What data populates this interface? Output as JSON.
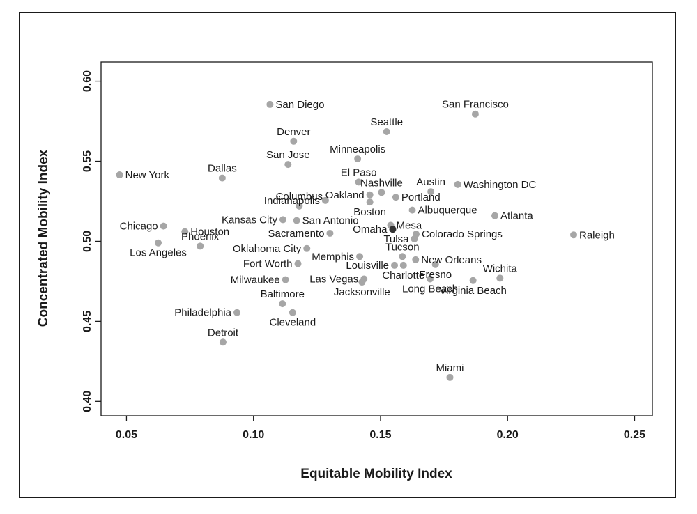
{
  "chart_data": {
    "type": "scatter",
    "title": "",
    "xlabel": "Equitable Mobility Index",
    "ylabel": "Concentrated Mobility Index",
    "xlim": [
      0.04,
      0.257
    ],
    "ylim": [
      0.391,
      0.612
    ],
    "xticks": [
      "0.05",
      "0.10",
      "0.15",
      "0.20",
      "0.25"
    ],
    "xtick_values": [
      0.05,
      0.1,
      0.15,
      0.2,
      0.25
    ],
    "yticks": [
      "0.40",
      "0.45",
      "0.50",
      "0.55",
      "0.60"
    ],
    "ytick_values": [
      0.4,
      0.45,
      0.5,
      0.55,
      0.6
    ],
    "grid": false,
    "point_color": "#a6a6a6",
    "highlight_color": "#333333",
    "points": [
      {
        "name": "San Diego",
        "x": 0.1065,
        "y": 0.5855,
        "lpos": "r"
      },
      {
        "name": "San Francisco",
        "x": 0.1873,
        "y": 0.5795,
        "lpos": "a"
      },
      {
        "name": "Seattle",
        "x": 0.1524,
        "y": 0.5685,
        "lpos": "a"
      },
      {
        "name": "Denver",
        "x": 0.1158,
        "y": 0.5625,
        "lpos": "a"
      },
      {
        "name": "Minneapolis",
        "x": 0.141,
        "y": 0.5515,
        "lpos": "a"
      },
      {
        "name": "San Jose",
        "x": 0.1136,
        "y": 0.548,
        "lpos": "a"
      },
      {
        "name": "New York",
        "x": 0.0473,
        "y": 0.5415,
        "lpos": "r"
      },
      {
        "name": "Dallas",
        "x": 0.0877,
        "y": 0.5395,
        "lpos": "a"
      },
      {
        "name": "El Paso",
        "x": 0.1414,
        "y": 0.537,
        "lpos": "a"
      },
      {
        "name": "Washington DC",
        "x": 0.1804,
        "y": 0.5355,
        "lpos": "r"
      },
      {
        "name": "Nashville",
        "x": 0.1504,
        "y": 0.5305,
        "lpos": "a"
      },
      {
        "name": "Austin",
        "x": 0.1698,
        "y": 0.531,
        "lpos": "a"
      },
      {
        "name": "Oakland",
        "x": 0.1458,
        "y": 0.529,
        "lpos": "l"
      },
      {
        "name": "Portland",
        "x": 0.156,
        "y": 0.5275,
        "lpos": "r"
      },
      {
        "name": "Indianapolis",
        "x": 0.1283,
        "y": 0.5255,
        "lpos": "l"
      },
      {
        "name": "Columbus",
        "x": 0.118,
        "y": 0.522,
        "lpos": "a"
      },
      {
        "name": "Boston",
        "x": 0.1458,
        "y": 0.5245,
        "lpos": "b"
      },
      {
        "name": "Albuquerque",
        "x": 0.1625,
        "y": 0.5195,
        "lpos": "r"
      },
      {
        "name": "Atlanta",
        "x": 0.195,
        "y": 0.516,
        "lpos": "r"
      },
      {
        "name": "Kansas City",
        "x": 0.1116,
        "y": 0.5135,
        "lpos": "l"
      },
      {
        "name": "San Antonio",
        "x": 0.117,
        "y": 0.513,
        "lpos": "r"
      },
      {
        "name": "Mesa",
        "x": 0.154,
        "y": 0.51,
        "lpos": "r"
      },
      {
        "name": "Omaha",
        "x": 0.1548,
        "y": 0.5075,
        "lpos": "l",
        "highlight": true
      },
      {
        "name": "Chicago",
        "x": 0.0646,
        "y": 0.5095,
        "lpos": "l"
      },
      {
        "name": "Houston",
        "x": 0.073,
        "y": 0.506,
        "lpos": "r"
      },
      {
        "name": "Colorado Springs",
        "x": 0.164,
        "y": 0.5045,
        "lpos": "r"
      },
      {
        "name": "Sacramento",
        "x": 0.1301,
        "y": 0.505,
        "lpos": "l"
      },
      {
        "name": "Raleigh",
        "x": 0.226,
        "y": 0.504,
        "lpos": "r"
      },
      {
        "name": "Tulsa",
        "x": 0.1633,
        "y": 0.5015,
        "lpos": "l"
      },
      {
        "name": "Los Angeles",
        "x": 0.0625,
        "y": 0.499,
        "lpos": "b"
      },
      {
        "name": "Phoenix",
        "x": 0.079,
        "y": 0.497,
        "lpos": "a"
      },
      {
        "name": "Oklahoma City",
        "x": 0.121,
        "y": 0.4955,
        "lpos": "l"
      },
      {
        "name": "Tucson",
        "x": 0.1586,
        "y": 0.4905,
        "lpos": "a"
      },
      {
        "name": "Memphis",
        "x": 0.1418,
        "y": 0.4905,
        "lpos": "l"
      },
      {
        "name": "New Orleans",
        "x": 0.1638,
        "y": 0.4885,
        "lpos": "r"
      },
      {
        "name": "Fort Worth",
        "x": 0.1175,
        "y": 0.486,
        "lpos": "l"
      },
      {
        "name": "Fresno",
        "x": 0.1716,
        "y": 0.4855,
        "lpos": "b"
      },
      {
        "name": "Louisville",
        "x": 0.1555,
        "y": 0.485,
        "lpos": "l"
      },
      {
        "name": "Charlotte",
        "x": 0.159,
        "y": 0.485,
        "lpos": "b"
      },
      {
        "name": "Wichita",
        "x": 0.197,
        "y": 0.477,
        "lpos": "a"
      },
      {
        "name": "Las Vegas",
        "x": 0.1435,
        "y": 0.4765,
        "lpos": "l"
      },
      {
        "name": "Milwaukee",
        "x": 0.1126,
        "y": 0.476,
        "lpos": "l"
      },
      {
        "name": "Long Beach",
        "x": 0.1695,
        "y": 0.4765,
        "lpos": "b"
      },
      {
        "name": "Virginia Beach",
        "x": 0.1864,
        "y": 0.4755,
        "lpos": "b"
      },
      {
        "name": "Jacksonville",
        "x": 0.1427,
        "y": 0.4745,
        "lpos": "b"
      },
      {
        "name": "Baltimore",
        "x": 0.1114,
        "y": 0.461,
        "lpos": "a"
      },
      {
        "name": "Cleveland",
        "x": 0.1154,
        "y": 0.4555,
        "lpos": "b"
      },
      {
        "name": "Philadelphia",
        "x": 0.0935,
        "y": 0.4555,
        "lpos": "l"
      },
      {
        "name": "Detroit",
        "x": 0.088,
        "y": 0.437,
        "lpos": "a"
      },
      {
        "name": "Miami",
        "x": 0.1773,
        "y": 0.415,
        "lpos": "a"
      }
    ]
  }
}
